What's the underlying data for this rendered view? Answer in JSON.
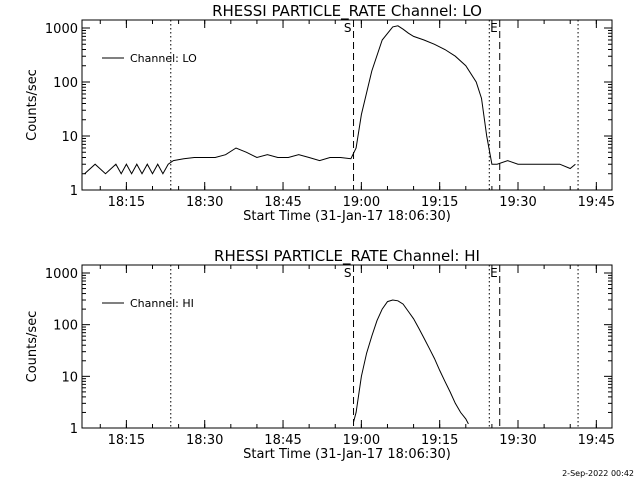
{
  "footer_stamp": "2-Sep-2022 00:42",
  "chart_data": [
    {
      "type": "line",
      "title": "RHESSI PARTICLE_RATE Channel: LO",
      "xlabel": "Start Time (31-Jan-17 18:06:30)",
      "ylabel": "Counts/sec",
      "y_scale": "log",
      "ylim": [
        1,
        1000
      ],
      "xlim": [
        "18:06:30",
        "19:48:00"
      ],
      "x_tick_labels": [
        "18:15",
        "18:30",
        "18:45",
        "19:00",
        "19:15",
        "19:30",
        "19:45"
      ],
      "y_tick_labels": [
        "1",
        "10",
        "100",
        "1000"
      ],
      "legend": [
        "Channel: LO"
      ],
      "legend_position": "top-left",
      "markers": [
        {
          "time": "18:23:30",
          "style": "dotted",
          "label": ""
        },
        {
          "time": "18:58:30",
          "style": "dashed",
          "label": "S"
        },
        {
          "time": "19:24:30",
          "style": "dotted",
          "label": ""
        },
        {
          "time": "19:26:30",
          "style": "dashed",
          "label": "E"
        },
        {
          "time": "19:41:30",
          "style": "dotted",
          "label": ""
        }
      ],
      "series": [
        {
          "name": "Channel: LO",
          "x": [
            "18:07:00",
            "18:09:00",
            "18:11:00",
            "18:13:00",
            "18:14:00",
            "18:15:00",
            "18:16:00",
            "18:17:00",
            "18:18:00",
            "18:19:00",
            "18:20:00",
            "18:21:00",
            "18:22:00",
            "18:23:00",
            "18:24:00",
            "18:26:00",
            "18:28:00",
            "18:30:00",
            "18:32:00",
            "18:34:00",
            "18:36:00",
            "18:38:00",
            "18:40:00",
            "18:42:00",
            "18:44:00",
            "18:46:00",
            "18:48:00",
            "18:50:00",
            "18:52:00",
            "18:54:00",
            "18:56:00",
            "18:58:00",
            "18:59:00",
            "19:00:00",
            "19:02:00",
            "19:04:00",
            "19:06:00",
            "19:07:00",
            "19:08:00",
            "19:09:00",
            "19:10:00",
            "19:12:00",
            "19:14:00",
            "19:16:00",
            "19:18:00",
            "19:20:00",
            "19:22:00",
            "19:23:00",
            "19:24:00",
            "19:25:00",
            "19:26:00",
            "19:28:00",
            "19:30:00",
            "19:32:00",
            "19:34:00",
            "19:36:00",
            "19:38:00",
            "19:40:00",
            "19:41:00"
          ],
          "y": [
            2,
            3,
            2,
            3,
            2,
            3,
            2,
            3,
            2,
            3,
            2,
            3,
            2,
            3,
            3.5,
            3.8,
            4,
            4,
            4,
            4.5,
            6,
            5,
            4,
            4.5,
            4,
            4,
            4.5,
            4,
            3.5,
            4,
            4,
            3.8,
            6,
            25,
            160,
            600,
            1050,
            1100,
            950,
            800,
            700,
            600,
            500,
            400,
            300,
            200,
            100,
            50,
            10,
            3,
            3,
            3.5,
            3,
            3,
            3,
            3,
            3,
            2.5,
            3
          ]
        }
      ]
    },
    {
      "type": "line",
      "title": "RHESSI PARTICLE_RATE Channel: HI",
      "xlabel": "Start Time (31-Jan-17 18:06:30)",
      "ylabel": "Counts/sec",
      "y_scale": "log",
      "ylim": [
        1,
        1000
      ],
      "xlim": [
        "18:06:30",
        "19:48:00"
      ],
      "x_tick_labels": [
        "18:15",
        "18:30",
        "18:45",
        "19:00",
        "19:15",
        "19:30",
        "19:45"
      ],
      "y_tick_labels": [
        "1",
        "10",
        "100",
        "1000"
      ],
      "legend": [
        "Channel: HI"
      ],
      "legend_position": "top-left",
      "markers": [
        {
          "time": "18:23:30",
          "style": "dotted",
          "label": ""
        },
        {
          "time": "18:58:30",
          "style": "dashed",
          "label": "S"
        },
        {
          "time": "19:24:30",
          "style": "dotted",
          "label": ""
        },
        {
          "time": "19:26:30",
          "style": "dashed",
          "label": "E"
        },
        {
          "time": "19:41:30",
          "style": "dotted",
          "label": ""
        }
      ],
      "series": [
        {
          "name": "Channel: HI",
          "x": [
            "18:58:30",
            "18:59:00",
            "19:00:00",
            "19:01:00",
            "19:02:00",
            "19:03:00",
            "19:04:00",
            "19:05:00",
            "19:06:00",
            "19:07:00",
            "19:08:00",
            "19:09:00",
            "19:10:00",
            "19:11:00",
            "19:12:00",
            "19:13:00",
            "19:14:00",
            "19:15:00",
            "19:16:00",
            "19:17:00",
            "19:18:00",
            "19:19:00",
            "19:20:00",
            "19:20:30"
          ],
          "y": [
            1.3,
            2,
            10,
            28,
            60,
            120,
            200,
            280,
            300,
            290,
            250,
            180,
            130,
            85,
            55,
            35,
            22,
            13,
            8,
            5,
            3,
            2,
            1.5,
            1.2
          ]
        }
      ]
    }
  ]
}
